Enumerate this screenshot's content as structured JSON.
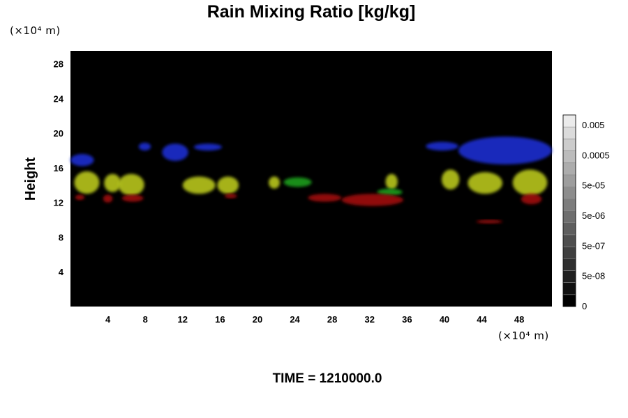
{
  "chart_data": {
    "type": "heatmap",
    "title": "Rain Mixing Ratio [kg/kg]",
    "ylabel": "Height",
    "y_unit": "(×10⁴ m)",
    "x_unit": "(×10⁴ m)",
    "xlim": [
      0,
      51.5
    ],
    "ylim": [
      0,
      29.5
    ],
    "x_ticks": [
      4,
      8,
      12,
      16,
      20,
      24,
      28,
      32,
      36,
      40,
      44,
      48
    ],
    "y_ticks": [
      4,
      8,
      12,
      16,
      20,
      24,
      28
    ],
    "colorbar": {
      "labels": [
        "0.005",
        "0.0005",
        "5e-05",
        "5e-06",
        "5e-07",
        "5e-08",
        "0"
      ],
      "levels": 16,
      "colormap": "grayscale"
    },
    "background_color": "#000000",
    "features": [
      {
        "color": "#1b2fd0",
        "x": [
          0.0,
          2.5
        ],
        "y": [
          16.2,
          17.6
        ],
        "note": "blue"
      },
      {
        "color": "#1b2fd0",
        "x": [
          7.3,
          8.6
        ],
        "y": [
          18.0,
          18.9
        ]
      },
      {
        "color": "#1b2fd0",
        "x": [
          9.8,
          12.6
        ],
        "y": [
          16.8,
          18.8
        ]
      },
      {
        "color": "#1b2fd0",
        "x": [
          13.2,
          16.2
        ],
        "y": [
          18.0,
          18.8
        ]
      },
      {
        "color": "#1b2fd0",
        "x": [
          38.0,
          41.5
        ],
        "y": [
          18.0,
          19.0
        ]
      },
      {
        "color": "#1b2fd0",
        "x": [
          41.5,
          51.5
        ],
        "y": [
          16.4,
          19.6
        ]
      },
      {
        "color": "#b8c61e",
        "x": [
          0.4,
          3.1
        ],
        "y": [
          13.0,
          15.6
        ]
      },
      {
        "color": "#b8c61e",
        "x": [
          3.6,
          5.4
        ],
        "y": [
          13.2,
          15.3
        ]
      },
      {
        "color": "#b8c61e",
        "x": [
          5.1,
          7.9
        ],
        "y": [
          12.8,
          15.3
        ]
      },
      {
        "color": "#b8c61e",
        "x": [
          12.0,
          15.5
        ],
        "y": [
          13.0,
          15.0
        ]
      },
      {
        "color": "#b8c61e",
        "x": [
          15.7,
          18.0
        ],
        "y": [
          13.0,
          15.0
        ]
      },
      {
        "color": "#b8c61e",
        "x": [
          21.2,
          22.4
        ],
        "y": [
          13.6,
          15.0
        ]
      },
      {
        "color": "#b8c61e",
        "x": [
          33.7,
          35.0
        ],
        "y": [
          13.5,
          15.3
        ]
      },
      {
        "color": "#b8c61e",
        "x": [
          39.7,
          41.6
        ],
        "y": [
          13.5,
          15.8
        ]
      },
      {
        "color": "#b8c61e",
        "x": [
          42.5,
          46.2
        ],
        "y": [
          13.0,
          15.5
        ]
      },
      {
        "color": "#b8c61e",
        "x": [
          47.3,
          51.0
        ],
        "y": [
          12.8,
          15.8
        ]
      },
      {
        "color": "#1e9e1e",
        "x": [
          22.8,
          25.8
        ],
        "y": [
          13.8,
          14.9
        ]
      },
      {
        "color": "#1e9e1e",
        "x": [
          32.8,
          35.5
        ],
        "y": [
          12.8,
          13.6
        ]
      },
      {
        "color": "#a01010",
        "x": [
          0.5,
          1.5
        ],
        "y": [
          12.3,
          12.9
        ]
      },
      {
        "color": "#a01010",
        "x": [
          3.5,
          4.5
        ],
        "y": [
          12.0,
          12.9
        ]
      },
      {
        "color": "#a01010",
        "x": [
          5.5,
          7.8
        ],
        "y": [
          12.1,
          12.9
        ]
      },
      {
        "color": "#a01010",
        "x": [
          16.5,
          17.8
        ],
        "y": [
          12.5,
          13.0
        ]
      },
      {
        "color": "#a01010",
        "x": [
          25.4,
          29.0
        ],
        "y": [
          12.1,
          13.0
        ]
      },
      {
        "color": "#a01010",
        "x": [
          29.0,
          35.6
        ],
        "y": [
          11.6,
          13.0
        ]
      },
      {
        "color": "#a01010",
        "x": [
          48.2,
          50.4
        ],
        "y": [
          11.8,
          13.0
        ]
      },
      {
        "color": "#a01010",
        "x": [
          43.4,
          46.2
        ],
        "y": [
          9.6,
          10.0
        ]
      }
    ]
  },
  "footer": {
    "time_label": "TIME = 1210000.0"
  }
}
